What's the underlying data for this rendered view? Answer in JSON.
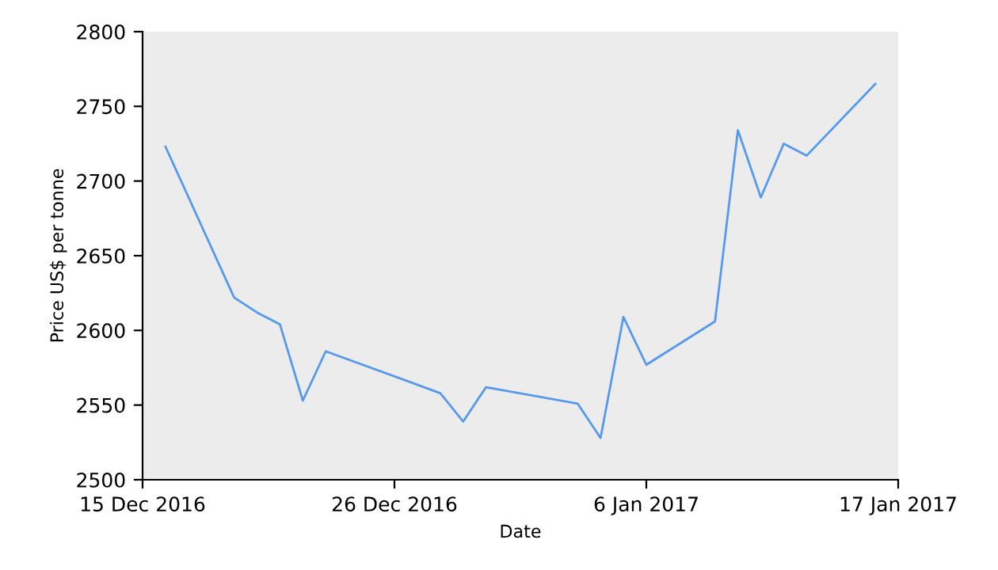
{
  "chart_data": {
    "type": "line",
    "xlabel": "Date",
    "ylabel": "Price US$ per tonne",
    "x": [
      "2016-12-16",
      "2016-12-19",
      "2016-12-20",
      "2016-12-21",
      "2016-12-22",
      "2016-12-23",
      "2016-12-28",
      "2016-12-29",
      "2016-12-30",
      "2017-01-03",
      "2017-01-04",
      "2017-01-05",
      "2017-01-06",
      "2017-01-09",
      "2017-01-10",
      "2017-01-11",
      "2017-01-12",
      "2017-01-13",
      "2017-01-16"
    ],
    "series": [
      {
        "color": "#5599ee",
        "values": [
          2723,
          2622,
          2612,
          2604,
          2553,
          2586,
          2558,
          2539,
          2562,
          2551,
          2528,
          2609,
          2577,
          2606,
          2734,
          2689,
          2725,
          2717,
          2765
        ]
      }
    ],
    "xlim": [
      "2016-12-15",
      "2017-01-17"
    ],
    "xticks": [
      {
        "value": "2016-12-15",
        "label": "15 Dec 2016"
      },
      {
        "value": "2016-12-26",
        "label": "26 Dec 2016"
      },
      {
        "value": "2017-01-06",
        "label": "6 Jan 2017"
      },
      {
        "value": "2017-01-17",
        "label": "17 Jan 2017"
      }
    ],
    "ylim": [
      2500,
      2800
    ],
    "yticks": [
      2500,
      2550,
      2600,
      2650,
      2700,
      2750,
      2800
    ],
    "grid": false,
    "legend": false,
    "marker": "none",
    "line_style": "solid"
  }
}
